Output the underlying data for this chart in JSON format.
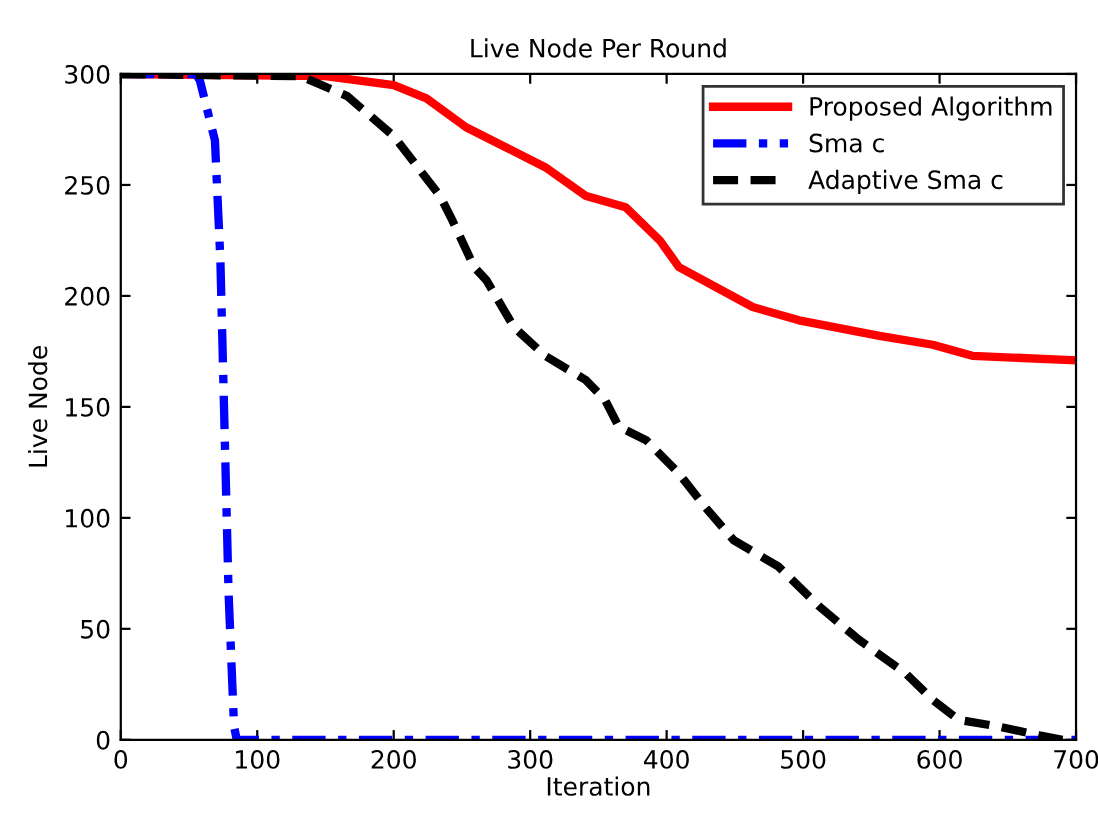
{
  "chart_data": {
    "type": "line",
    "title": "Live Node Per Round",
    "xlabel": "Iteration",
    "ylabel": "Live Node",
    "xlim": [
      0,
      700
    ],
    "ylim": [
      0,
      300
    ],
    "xticks": [
      0,
      100,
      200,
      300,
      400,
      500,
      600,
      700
    ],
    "yticks": [
      0,
      50,
      100,
      150,
      200,
      250,
      300
    ],
    "grid": false,
    "legend": "top right",
    "series": [
      {
        "name": "Proposed Algorithm",
        "color": "#ff0000",
        "line_style": "solid",
        "x": [
          0,
          150,
          200,
          224,
          253,
          282,
          311,
          341,
          370,
          395,
          409,
          463,
          497,
          556,
          595,
          624,
          700
        ],
        "values": [
          300,
          299,
          295,
          289,
          276,
          267,
          258,
          245,
          240,
          225,
          213,
          195,
          189,
          182,
          178,
          173,
          171
        ]
      },
      {
        "name": "Sma c",
        "color": "#0000ff",
        "line_style": "dashdot",
        "x": [
          0,
          55,
          58,
          69,
          73,
          76,
          79,
          83,
          85,
          700
        ],
        "values": [
          300,
          300,
          297,
          270,
          216,
          141,
          66,
          6,
          0,
          0
        ]
      },
      {
        "name": "Adaptive Sma c",
        "color": "#000000",
        "line_style": "dashed",
        "x": [
          0,
          132,
          166,
          200,
          234,
          243,
          259,
          268,
          288,
          311,
          341,
          355,
          365,
          385,
          409,
          428,
          449,
          482,
          512,
          541,
          575,
          595,
          614,
          643,
          673,
          690,
          700
        ],
        "values": [
          300,
          299,
          290,
          272,
          245,
          234,
          213,
          207,
          186,
          173,
          162,
          153,
          141,
          135,
          120,
          105,
          90,
          78,
          60,
          45,
          30,
          18,
          9,
          6,
          2,
          0,
          0
        ]
      }
    ]
  }
}
